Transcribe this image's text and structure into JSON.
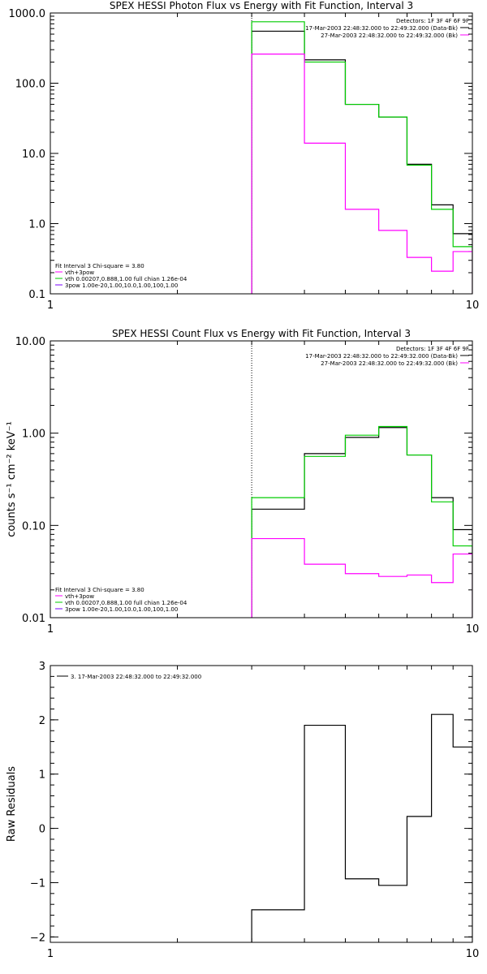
{
  "colors": {
    "black": "#000000",
    "magenta": "#ff00ff",
    "green": "#00cc00",
    "purple": "#7a00ff"
  },
  "chart_data": [
    {
      "id": "photon",
      "type": "line",
      "title": "SPEX HESSI Photon Flux vs Energy with Fit Function, Interval 3",
      "xlabel": "",
      "ylabel": "",
      "xscale": "log",
      "yscale": "log",
      "xlim": [
        1,
        10
      ],
      "ylim": [
        0.1,
        1000
      ],
      "x_ticks": [
        {
          "value": 1,
          "label": "1"
        },
        {
          "value": 10,
          "label": "10"
        }
      ],
      "y_ticks": [
        {
          "value": 0.1,
          "label": "0.1"
        },
        {
          "value": 1,
          "label": "1.0"
        },
        {
          "value": 10,
          "label": "10.0"
        },
        {
          "value": 100,
          "label": "100.0"
        },
        {
          "value": 1000,
          "label": "1000.0"
        }
      ],
      "vline": 3,
      "bin_edges": [
        3.0,
        4.0,
        5.0,
        6.0,
        7.0,
        8.0,
        9.0,
        10.0
      ],
      "series": [
        {
          "color": "#000000",
          "values": [
            550,
            215,
            50,
            33,
            7.0,
            1.85,
            0.72
          ]
        },
        {
          "color": "#00cc00",
          "values": [
            750,
            200,
            50,
            33,
            6.8,
            1.6,
            0.47
          ]
        },
        {
          "color": "#ff00ff",
          "values": [
            260,
            14,
            1.6,
            0.8,
            0.33,
            0.21,
            0.4
          ]
        }
      ],
      "legend_topright": [
        {
          "text": "Detectors: 1F 3F 4F 6F 9F",
          "color": "#000000",
          "line": false
        },
        {
          "text": "17-Mar-2003 22:48:32.000 to 22:49:32.000 (Data-Bk)",
          "color": "#000000",
          "line": true
        },
        {
          "text": "27-Mar-2003 22:48:32.000 to 22:49:32.000 (Bk)",
          "color": "#ff00ff",
          "line": true
        }
      ],
      "legend_bottomleft": [
        {
          "text": "Fit Interval 3   Chi-square = 3.80",
          "color": "#000000",
          "line": false
        },
        {
          "text": "vth+3pow",
          "color": "#ff00ff",
          "line": true
        },
        {
          "text": "vth 0.00207,0.888,1.00  full chian 1.26e-04",
          "color": "#00cc00",
          "line": true
        },
        {
          "text": "3pow 1.00e-20,1.00,10.0,1.00,100,1.00",
          "color": "#7a00ff",
          "line": true
        }
      ]
    },
    {
      "id": "count",
      "type": "line",
      "title": "SPEX HESSI Count Flux vs Energy with Fit Function, Interval 3",
      "xlabel": "",
      "ylabel": "counts s⁻¹ cm⁻² keV⁻¹",
      "xscale": "log",
      "yscale": "log",
      "xlim": [
        1,
        10
      ],
      "ylim": [
        0.01,
        10
      ],
      "x_ticks": [
        {
          "value": 1,
          "label": "1"
        },
        {
          "value": 10,
          "label": "10"
        }
      ],
      "y_ticks": [
        {
          "value": 0.01,
          "label": "0.01"
        },
        {
          "value": 0.1,
          "label": "0.10"
        },
        {
          "value": 1,
          "label": "1.00"
        },
        {
          "value": 10,
          "label": "10.00"
        }
      ],
      "vline": 3,
      "bin_edges": [
        3.0,
        4.0,
        5.0,
        6.0,
        7.0,
        8.0,
        9.0,
        10.0
      ],
      "series": [
        {
          "color": "#000000",
          "values": [
            0.15,
            0.6,
            0.9,
            1.15,
            0.58,
            0.2,
            0.09
          ]
        },
        {
          "color": "#00cc00",
          "values": [
            0.2,
            0.56,
            0.95,
            1.18,
            0.58,
            0.18,
            0.06
          ]
        },
        {
          "color": "#ff00ff",
          "values": [
            0.072,
            0.038,
            0.03,
            0.028,
            0.029,
            0.024,
            0.049
          ]
        }
      ],
      "legend_topright": [
        {
          "text": "Detectors: 1F 3F 4F 6F 9F",
          "color": "#000000",
          "line": false
        },
        {
          "text": "17-Mar-2003 22:48:32.000 to 22:49:32.000 (Data-Bk)",
          "color": "#000000",
          "line": true
        },
        {
          "text": "27-Mar-2003 22:48:32.000 to 22:49:32.000 (Bk)",
          "color": "#ff00ff",
          "line": true
        }
      ],
      "legend_bottomleft": [
        {
          "text": "Fit Interval 3   Chi-square = 3.80",
          "color": "#000000",
          "line": false
        },
        {
          "text": "vth+3pow",
          "color": "#ff00ff",
          "line": true
        },
        {
          "text": "vth 0.00207,0.888,1.00  full chian 1.26e-04",
          "color": "#00cc00",
          "line": true
        },
        {
          "text": "3pow 1.00e-20,1.00,10.0,1.00,100,1.00",
          "color": "#7a00ff",
          "line": true
        }
      ]
    },
    {
      "id": "residuals",
      "type": "line",
      "title": "",
      "xlabel": "",
      "ylabel": "Raw Residuals",
      "xscale": "log",
      "yscale": "linear",
      "xlim": [
        1,
        10
      ],
      "ylim": [
        -2.1,
        3
      ],
      "x_ticks": [
        {
          "value": 1,
          "label": "1"
        },
        {
          "value": 10,
          "label": "10"
        }
      ],
      "y_ticks": [
        {
          "value": -2,
          "label": "−2"
        },
        {
          "value": -1,
          "label": "−1"
        },
        {
          "value": 0,
          "label": "0"
        },
        {
          "value": 1,
          "label": "1"
        },
        {
          "value": 2,
          "label": "2"
        },
        {
          "value": 3,
          "label": "3"
        }
      ],
      "vline": null,
      "bin_edges": [
        3.0,
        4.0,
        5.0,
        6.0,
        7.0,
        8.0,
        9.0,
        10.0
      ],
      "series": [
        {
          "color": "#000000",
          "values": [
            -1.5,
            1.9,
            -0.93,
            -1.05,
            0.22,
            2.1,
            1.5
          ]
        }
      ],
      "legend_topright": [],
      "legend_bottomleft": [],
      "legend_topleft": [
        {
          "text": "3. 17-Mar-2003 22:48:32.000 to 22:49:32.000",
          "color": "#000000",
          "line": true
        }
      ]
    }
  ]
}
